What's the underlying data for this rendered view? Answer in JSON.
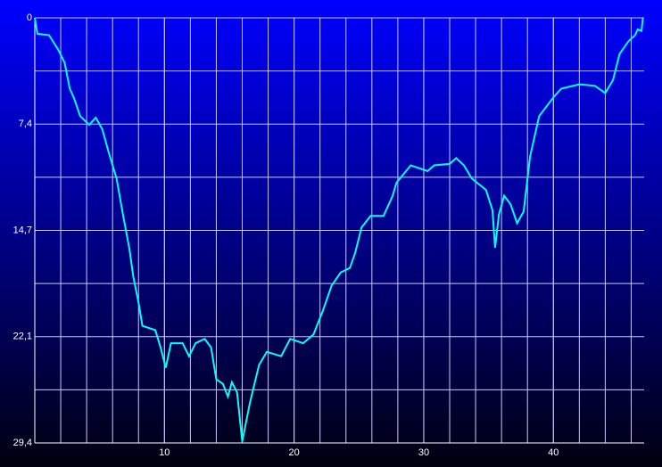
{
  "chart_data": {
    "type": "line",
    "x": [
      0,
      0.2,
      1.1,
      1.8,
      2.3,
      2.7,
      3.0,
      3.5,
      4.2,
      4.7,
      5.2,
      5.7,
      6.3,
      6.8,
      7.3,
      7.6,
      8.0,
      8.3,
      9.3,
      9.7,
      10.1,
      10.5,
      11.4,
      11.9,
      12.4,
      13.1,
      13.6,
      14.0,
      14.5,
      14.9,
      15.2,
      15.6,
      16.0,
      16.6,
      17.3,
      17.9,
      19.0,
      19.7,
      20.7,
      21.5,
      22.2,
      22.9,
      23.6,
      24.3,
      24.7,
      25.2,
      25.9,
      26.9,
      27.6,
      27.9,
      29.0,
      30.3,
      30.8,
      32.0,
      32.5,
      33.1,
      33.7,
      34.8,
      35.3,
      35.5,
      35.8,
      36.2,
      36.7,
      37.2,
      37.7,
      38.2,
      38.9,
      40.0,
      40.6,
      42.0,
      43.2,
      44.0,
      44.6,
      45.1,
      45.8,
      46.3,
      46.5,
      46.8,
      46.9
    ],
    "series": [
      {
        "color": "#00ffff",
        "values": [
          0,
          1.1,
          1.2,
          2.2,
          3.1,
          4.9,
          5.5,
          6.8,
          7.4,
          6.9,
          7.7,
          9.3,
          11.1,
          13.6,
          16.0,
          17.9,
          19.7,
          21.3,
          21.6,
          22.8,
          24.2,
          22.5,
          22.5,
          23.4,
          22.5,
          22.2,
          22.8,
          25.0,
          25.3,
          26.2,
          25.2,
          25.9,
          29.3,
          26.6,
          24.0,
          23.1,
          23.4,
          22.2,
          22.5,
          21.9,
          20.3,
          18.5,
          17.6,
          17.3,
          16.3,
          14.5,
          13.7,
          13.7,
          12.3,
          11.4,
          10.2,
          10.6,
          10.2,
          10.1,
          9.7,
          10.2,
          11.1,
          11.9,
          13.3,
          15.9,
          13.6,
          12.3,
          12.9,
          14.2,
          13.4,
          9.6,
          6.8,
          5.5,
          4.9,
          4.6,
          4.7,
          5.2,
          4.3,
          2.5,
          1.6,
          1.2,
          0.8,
          0.9,
          0
        ]
      }
    ],
    "xlim": [
      0,
      47
    ],
    "xticks": [
      10,
      20,
      30,
      40
    ],
    "xgrid": [
      2,
      4,
      6,
      8,
      10,
      12,
      14,
      16,
      18,
      20,
      22,
      24,
      26,
      28,
      30,
      32,
      34,
      36,
      38,
      40,
      42,
      44,
      46
    ],
    "ylim": [
      29.4,
      0
    ],
    "yticks": [
      0,
      {
        "value": 7.35,
        "label": "7,4"
      },
      {
        "value": 14.7,
        "label": "14,7"
      },
      {
        "value": 22.05,
        "label": "22,1"
      },
      {
        "value": 29.4,
        "label": "29,4"
      }
    ],
    "ygrid": [
      3.675,
      11.025,
      18.375,
      25.725
    ],
    "grid": true
  }
}
